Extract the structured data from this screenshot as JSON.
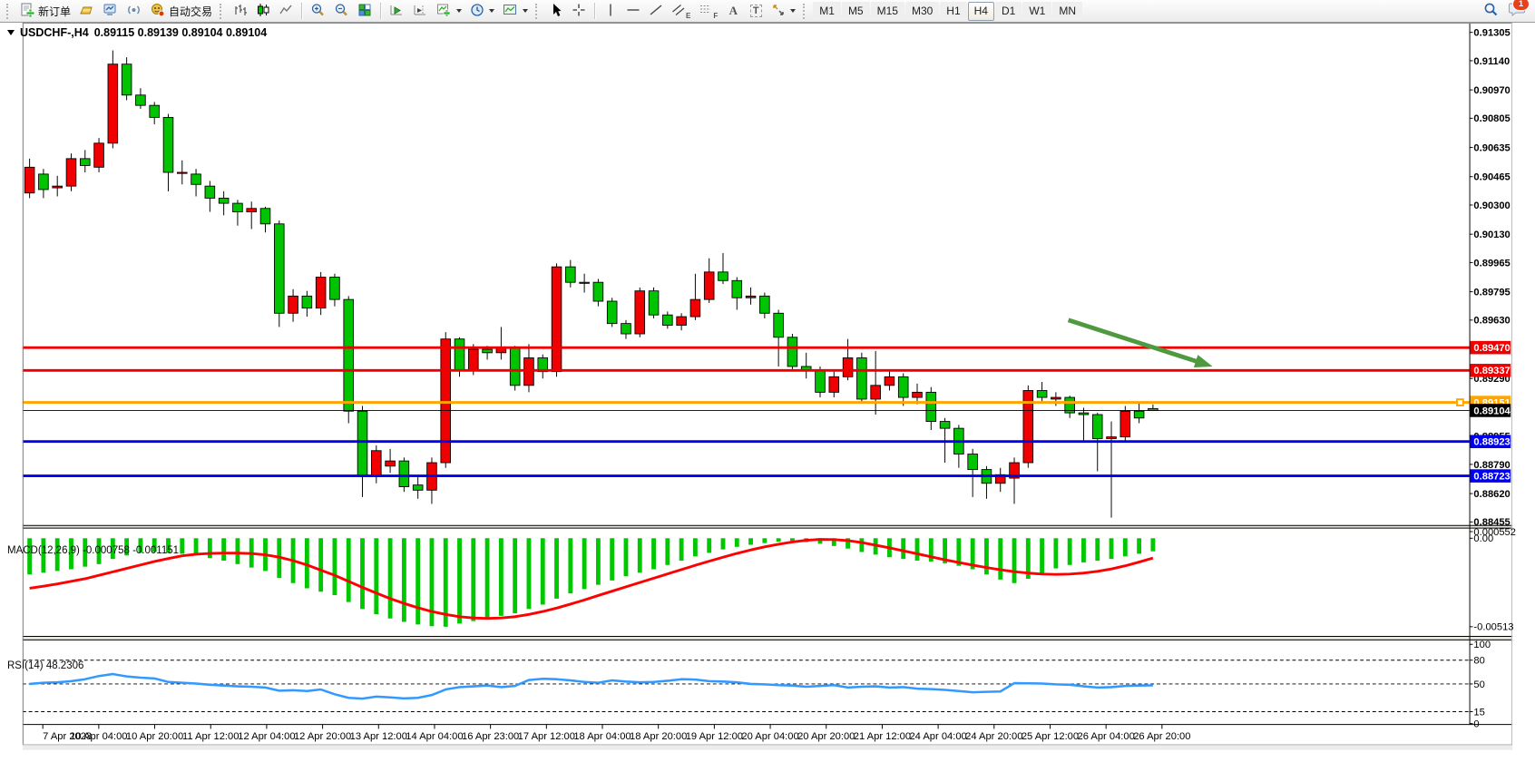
{
  "toolbar": {
    "new_order_label": "新订单",
    "autotrading_label": "自动交易",
    "tool_letters": {
      "text": "A",
      "label": "T",
      "channel": "E",
      "fibo": "F"
    },
    "timeframes": [
      "M1",
      "M5",
      "M15",
      "M30",
      "H1",
      "H4",
      "D1",
      "W1",
      "MN"
    ],
    "active_timeframe": "H4",
    "chat_badge": "1"
  },
  "chart_title": {
    "symbol": "USDCHF-,H4",
    "ohlc": "0.89115 0.89139 0.89104 0.89104"
  },
  "chart_data": {
    "type": "candlestick",
    "symbol": "USDCHF-",
    "period": "H4",
    "x_labels": [
      "7 Apr 2023",
      "10 Apr 04:00",
      "10 Apr 20:00",
      "11 Apr 12:00",
      "12 Apr 04:00",
      "12 Apr 20:00",
      "13 Apr 12:00",
      "14 Apr 04:00",
      "16 Apr 23:00",
      "17 Apr 12:00",
      "18 Apr 04:00",
      "18 Apr 20:00",
      "19 Apr 12:00",
      "20 Apr 04:00",
      "20 Apr 20:00",
      "21 Apr 12:00",
      "24 Apr 04:00",
      "24 Apr 20:00",
      "25 Apr 12:00",
      "26 Apr 04:00",
      "26 Apr 20:00"
    ],
    "y_ticks": [
      "0.91305",
      "0.91140",
      "0.90970",
      "0.90805",
      "0.90635",
      "0.90465",
      "0.90300",
      "0.90130",
      "0.89965",
      "0.89795",
      "0.89630",
      "0.89460",
      "0.89290",
      "0.89125",
      "0.88955",
      "0.88790",
      "0.88620",
      "0.88455"
    ],
    "y_range": {
      "top": 0.91305,
      "bottom": 0.88455
    },
    "candles": [
      [
        0.9037,
        0.9057,
        0.9034,
        0.9052
      ],
      [
        0.9048,
        0.9051,
        0.9034,
        0.9039
      ],
      [
        0.904,
        0.9047,
        0.9035,
        0.9041
      ],
      [
        0.9041,
        0.906,
        0.9038,
        0.9057
      ],
      [
        0.9057,
        0.9062,
        0.9049,
        0.9053
      ],
      [
        0.9052,
        0.9069,
        0.9049,
        0.9066
      ],
      [
        0.9066,
        0.912,
        0.9063,
        0.9112
      ],
      [
        0.9112,
        0.9116,
        0.9091,
        0.9094
      ],
      [
        0.9094,
        0.9098,
        0.9086,
        0.9088
      ],
      [
        0.9088,
        0.909,
        0.9077,
        0.9081
      ],
      [
        0.9081,
        0.9083,
        0.9038,
        0.9049
      ],
      [
        0.9049,
        0.9056,
        0.9042,
        0.9049
      ],
      [
        0.9048,
        0.9051,
        0.9035,
        0.9042
      ],
      [
        0.9041,
        0.9044,
        0.9026,
        0.9034
      ],
      [
        0.9034,
        0.9038,
        0.9024,
        0.9031
      ],
      [
        0.9031,
        0.9033,
        0.9018,
        0.9026
      ],
      [
        0.9026,
        0.9032,
        0.9016,
        0.9028
      ],
      [
        0.9028,
        0.9029,
        0.9014,
        0.9019
      ],
      [
        0.9019,
        0.9021,
        0.8959,
        0.8967
      ],
      [
        0.8967,
        0.8981,
        0.8962,
        0.8977
      ],
      [
        0.8977,
        0.898,
        0.8965,
        0.897
      ],
      [
        0.897,
        0.8991,
        0.8966,
        0.8988
      ],
      [
        0.8988,
        0.899,
        0.8971,
        0.8975
      ],
      [
        0.8975,
        0.8977,
        0.8903,
        0.891
      ],
      [
        0.891,
        0.8913,
        0.886,
        0.8872
      ],
      [
        0.8872,
        0.889,
        0.8868,
        0.8887
      ],
      [
        0.8878,
        0.8888,
        0.8874,
        0.8881
      ],
      [
        0.8881,
        0.8883,
        0.8863,
        0.8866
      ],
      [
        0.8867,
        0.8872,
        0.8859,
        0.8864
      ],
      [
        0.8864,
        0.8883,
        0.8856,
        0.888
      ],
      [
        0.888,
        0.8956,
        0.8877,
        0.8952
      ],
      [
        0.8952,
        0.8953,
        0.893,
        0.8934
      ],
      [
        0.8934,
        0.8949,
        0.8931,
        0.8946
      ],
      [
        0.8946,
        0.8948,
        0.894,
        0.8944
      ],
      [
        0.8944,
        0.8959,
        0.894,
        0.8947
      ],
      [
        0.8947,
        0.8948,
        0.8922,
        0.8925
      ],
      [
        0.8925,
        0.8949,
        0.8921,
        0.8941
      ],
      [
        0.8941,
        0.8943,
        0.8929,
        0.8933
      ],
      [
        0.8933,
        0.8996,
        0.893,
        0.8994
      ],
      [
        0.8994,
        0.8998,
        0.8982,
        0.8985
      ],
      [
        0.8985,
        0.899,
        0.8979,
        0.8985
      ],
      [
        0.8985,
        0.8987,
        0.8971,
        0.8974
      ],
      [
        0.8974,
        0.8976,
        0.8959,
        0.8961
      ],
      [
        0.8961,
        0.8963,
        0.8952,
        0.8955
      ],
      [
        0.8955,
        0.8982,
        0.8953,
        0.898
      ],
      [
        0.898,
        0.8982,
        0.8964,
        0.8966
      ],
      [
        0.8966,
        0.8968,
        0.8958,
        0.896
      ],
      [
        0.896,
        0.8967,
        0.8957,
        0.8965
      ],
      [
        0.8965,
        0.899,
        0.8963,
        0.8975
      ],
      [
        0.8975,
        0.8999,
        0.8973,
        0.8991
      ],
      [
        0.8991,
        0.9002,
        0.8984,
        0.8986
      ],
      [
        0.8986,
        0.8988,
        0.8969,
        0.8976
      ],
      [
        0.8976,
        0.8982,
        0.8972,
        0.8977
      ],
      [
        0.8977,
        0.8979,
        0.8964,
        0.8967
      ],
      [
        0.8967,
        0.8969,
        0.8936,
        0.8953
      ],
      [
        0.8953,
        0.8955,
        0.8933,
        0.8936
      ],
      [
        0.8936,
        0.8944,
        0.8929,
        0.8934
      ],
      [
        0.8934,
        0.8936,
        0.8918,
        0.8921
      ],
      [
        0.8921,
        0.8933,
        0.8918,
        0.893
      ],
      [
        0.893,
        0.8952,
        0.8928,
        0.8941
      ],
      [
        0.8941,
        0.8944,
        0.8915,
        0.8917
      ],
      [
        0.8917,
        0.8945,
        0.8908,
        0.8925
      ],
      [
        0.8925,
        0.8934,
        0.8922,
        0.893
      ],
      [
        0.893,
        0.8932,
        0.8913,
        0.8918
      ],
      [
        0.8918,
        0.8926,
        0.8914,
        0.8921
      ],
      [
        0.8921,
        0.8924,
        0.8899,
        0.8904
      ],
      [
        0.8904,
        0.8906,
        0.888,
        0.89
      ],
      [
        0.89,
        0.8902,
        0.8877,
        0.8885
      ],
      [
        0.8885,
        0.8888,
        0.886,
        0.8876
      ],
      [
        0.8876,
        0.8878,
        0.8859,
        0.8868
      ],
      [
        0.8868,
        0.8877,
        0.8863,
        0.8873
      ],
      [
        0.8871,
        0.8883,
        0.8856,
        0.888
      ],
      [
        0.888,
        0.8925,
        0.8877,
        0.8922
      ],
      [
        0.8922,
        0.8927,
        0.8915,
        0.8918
      ],
      [
        0.8917,
        0.8921,
        0.8913,
        0.8918
      ],
      [
        0.8918,
        0.8919,
        0.8906,
        0.8909
      ],
      [
        0.8909,
        0.8912,
        0.8893,
        0.8908
      ],
      [
        0.8908,
        0.8909,
        0.8875,
        0.8894
      ],
      [
        0.8894,
        0.8904,
        0.8848,
        0.8895
      ],
      [
        0.8895,
        0.8913,
        0.8892,
        0.891
      ],
      [
        0.891,
        0.8915,
        0.8903,
        0.8906
      ],
      [
        0.89115,
        0.89139,
        0.89104,
        0.89104
      ]
    ],
    "hlines": [
      {
        "price": 0.8947,
        "label": "0.89470",
        "color": "#EE0000",
        "width": 3
      },
      {
        "price": 0.89337,
        "label": "0.89337",
        "color": "#EE0000",
        "width": 3
      },
      {
        "price": 0.89151,
        "label": "0.89151",
        "color": "#FFA500",
        "width": 3,
        "handle": true
      },
      {
        "price": 0.88923,
        "label": "0.88923",
        "color": "#0000EE",
        "width": 3
      },
      {
        "price": 0.88723,
        "label": "0.88723",
        "color": "#0000EE",
        "width": 3
      }
    ],
    "current_price": {
      "value": 0.89104,
      "label": "0.89104",
      "color": "#000000"
    },
    "arrow": {
      "from_index": 74.9,
      "from_price": 0.8963,
      "to_index": 85.3,
      "to_price": 0.8936,
      "color": "#4E9A3E"
    },
    "colors": {
      "up": "#F00000",
      "down": "#00C400",
      "wick": "#000000",
      "macd_hist": "#00C800",
      "macd_signal": "#FF0000",
      "rsi": "#3399FF"
    },
    "macd": {
      "label": "MACD(12,26,9) -0.000758 -0.001151",
      "ticks": [
        "0.000552",
        "0.00",
        "-0.00513"
      ],
      "tick_values": [
        0.000552,
        0,
        -0.00513
      ],
      "hist": [
        -0.0021,
        -0.002,
        -0.0019,
        -0.0018,
        -0.00165,
        -0.0015,
        -0.0012,
        -0.001,
        -0.00085,
        -0.0008,
        -0.00085,
        -0.0009,
        -0.001,
        -0.00115,
        -0.0013,
        -0.0015,
        -0.0017,
        -0.0019,
        -0.0023,
        -0.0026,
        -0.0029,
        -0.0031,
        -0.0033,
        -0.0037,
        -0.0041,
        -0.0044,
        -0.00465,
        -0.00485,
        -0.005,
        -0.0051,
        -0.00513,
        -0.00495,
        -0.0048,
        -0.00465,
        -0.0045,
        -0.00435,
        -0.0041,
        -0.00385,
        -0.0035,
        -0.0032,
        -0.00295,
        -0.0027,
        -0.00245,
        -0.0022,
        -0.002,
        -0.0018,
        -0.00155,
        -0.0013,
        -0.00105,
        -0.00085,
        -0.00065,
        -0.0005,
        -0.00038,
        -0.00028,
        -0.0002,
        -0.00015,
        -0.00022,
        -0.00032,
        -0.00045,
        -0.0006,
        -0.0008,
        -0.00095,
        -0.0011,
        -0.0012,
        -0.0013,
        -0.00135,
        -0.00145,
        -0.0016,
        -0.0018,
        -0.0021,
        -0.0024,
        -0.0026,
        -0.00235,
        -0.00205,
        -0.00175,
        -0.00155,
        -0.0014,
        -0.0013,
        -0.0012,
        -0.00105,
        -0.0009,
        -0.000758
      ],
      "signal": [
        -0.0029,
        -0.00278,
        -0.00265,
        -0.0025,
        -0.00235,
        -0.00215,
        -0.00195,
        -0.00175,
        -0.00155,
        -0.00135,
        -0.00118,
        -0.00102,
        -0.00093,
        -0.00088,
        -0.00086,
        -0.00086,
        -0.00089,
        -0.00096,
        -0.0011,
        -0.0013,
        -0.00155,
        -0.00185,
        -0.00215,
        -0.0025,
        -0.00285,
        -0.00318,
        -0.0035,
        -0.00378,
        -0.00403,
        -0.00425,
        -0.00442,
        -0.00455,
        -0.00462,
        -0.00465,
        -0.00462,
        -0.00455,
        -0.00442,
        -0.00425,
        -0.00405,
        -0.00382,
        -0.00358,
        -0.00332,
        -0.00307,
        -0.00282,
        -0.00257,
        -0.00232,
        -0.00207,
        -0.00182,
        -0.00157,
        -0.00133,
        -0.0011,
        -0.00088,
        -0.00068,
        -0.0005,
        -0.00035,
        -0.00022,
        -0.00012,
        -7e-05,
        -8e-05,
        -0.00014,
        -0.00025,
        -0.0004,
        -0.00056,
        -0.00073,
        -0.0009,
        -0.00108,
        -0.00125,
        -0.00141,
        -0.00156,
        -0.0017,
        -0.00183,
        -0.00194,
        -0.00202,
        -0.00208,
        -0.0021,
        -0.00208,
        -0.00202,
        -0.00192,
        -0.00178,
        -0.0016,
        -0.00138,
        -0.001151
      ]
    },
    "rsi": {
      "label": "RSI(14) 48.2306",
      "ticks": [
        "100",
        "80",
        "50",
        "15",
        "0"
      ],
      "tick_values": [
        100,
        80,
        50,
        15,
        0
      ],
      "levels": [
        80,
        50,
        15
      ],
      "values": [
        50,
        51.5,
        52,
        53.5,
        56,
        60,
        62.5,
        59.5,
        58,
        57,
        52.5,
        51.5,
        50.5,
        49,
        48,
        47,
        46.5,
        45.5,
        41.5,
        42,
        41,
        43,
        37,
        32.5,
        31.5,
        34,
        33,
        31.8,
        32.5,
        36,
        43,
        46,
        47,
        48,
        46,
        47.5,
        55,
        56.5,
        56,
        54.5,
        52.5,
        51.5,
        54.5,
        53,
        52,
        52.5,
        54,
        56,
        55.5,
        53.5,
        53,
        52,
        50,
        49.5,
        48.5,
        48,
        46.5,
        47.5,
        48.5,
        45.5,
        46.5,
        47,
        45.5,
        46,
        44,
        43.5,
        42.5,
        41,
        39.5,
        40,
        40.5,
        51,
        50.8,
        50.5,
        49.5,
        49,
        47,
        45.5,
        46,
        47.5,
        48,
        48.23
      ]
    }
  }
}
